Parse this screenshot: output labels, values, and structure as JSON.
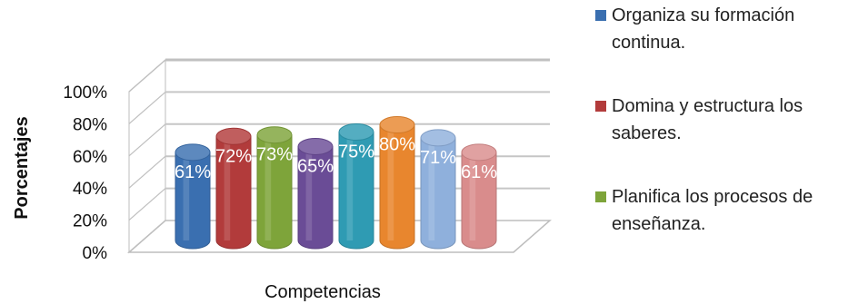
{
  "chart_data": {
    "type": "bar",
    "style": "3d-cylinder",
    "ylabel": "Porcentajes",
    "xlabel": "Competencias",
    "ylim": [
      0,
      100
    ],
    "yticks": [
      "0%",
      "20%",
      "40%",
      "60%",
      "80%",
      "100%"
    ],
    "grid": true,
    "legend_position": "right",
    "series": [
      {
        "name": "Organiza su formación continua.",
        "value": 61,
        "label": "61%",
        "color": "#3a6fb0"
      },
      {
        "name": "Domina y estructura los saberes.",
        "value": 72,
        "label": "72%",
        "color": "#b23b3b"
      },
      {
        "name": "Planifica los procesos de enseñanza.",
        "value": 73,
        "label": "73%",
        "color": "#7ea43a"
      },
      {
        "name": "",
        "value": 65,
        "label": "65%",
        "color": "#6a4c96"
      },
      {
        "name": "",
        "value": 75,
        "label": "75%",
        "color": "#2f9bb3"
      },
      {
        "name": "",
        "value": 80,
        "label": "80%",
        "color": "#e8862e"
      },
      {
        "name": "",
        "value": 71,
        "label": "71%",
        "color": "#8fb0dc"
      },
      {
        "name": "",
        "value": 61,
        "label": "61%",
        "color": "#d98c8c"
      }
    ]
  },
  "legend": [
    {
      "label": "Organiza su formación continua.",
      "color": "#3a6fb0"
    },
    {
      "label": "Domina y estructura los saberes.",
      "color": "#b23b3b"
    },
    {
      "label": "Planifica los procesos de enseñanza.",
      "color": "#7ea43a"
    }
  ]
}
